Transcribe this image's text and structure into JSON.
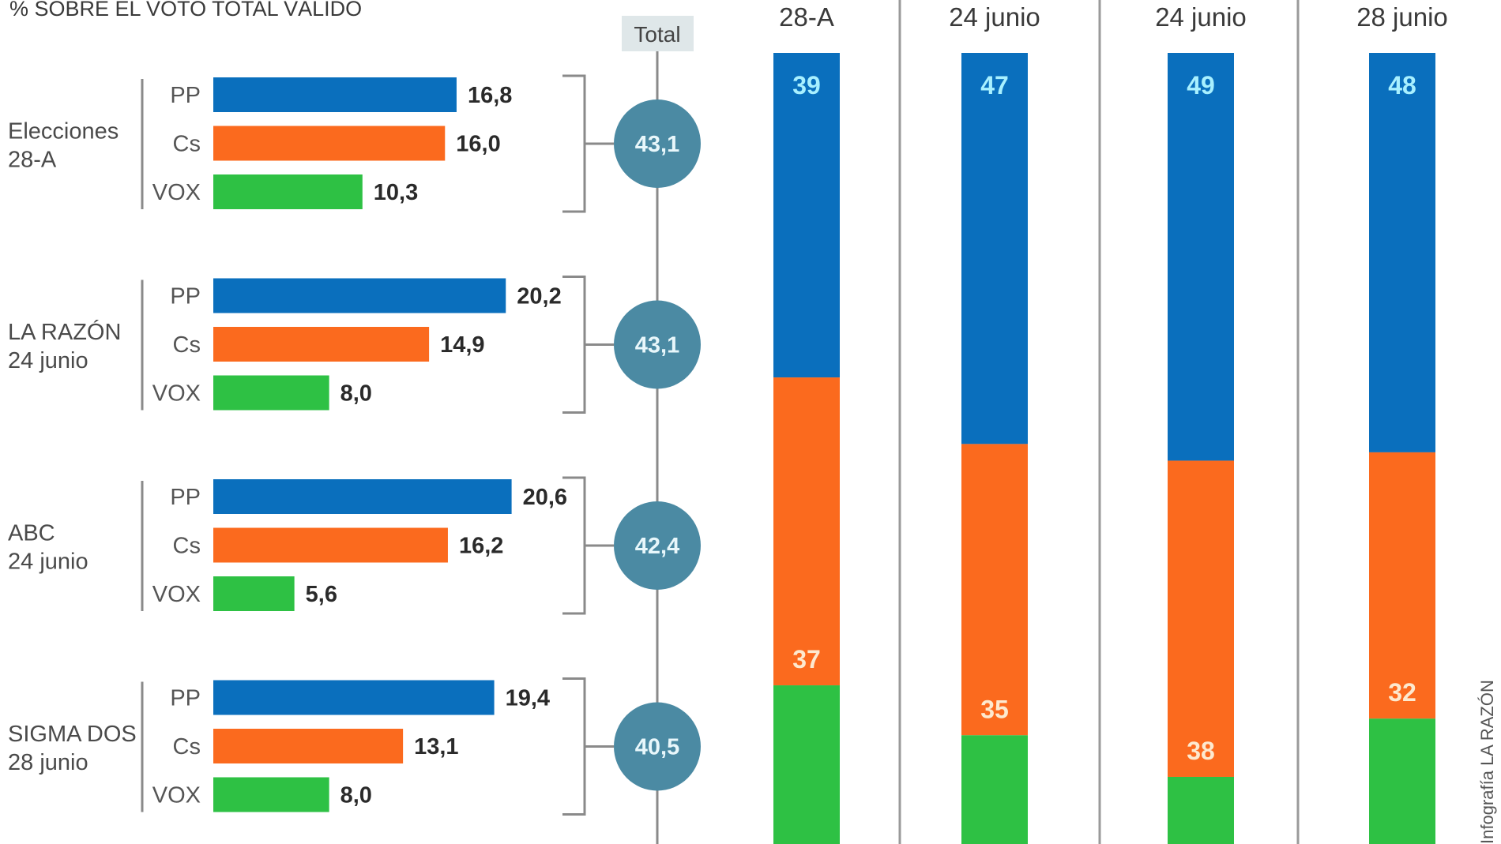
{
  "colors": {
    "PP": "#0a6fbd",
    "Cs": "#fb6a1e",
    "VOX": "#2ec144",
    "circle": "#4b8aa3",
    "total_box": "#dfe7e9",
    "lines": "#8a8a8a",
    "seg_label_blue": "#a8f0ff",
    "seg_label_orange": "#fde9cf",
    "seg_label_green": "#e6ffe0"
  },
  "title": "% SOBRE EL VOTO TOTAL VÁLIDO",
  "total_label": "Total",
  "credit": "Infografía LA RAZÓN",
  "chart_data": [
    {
      "type": "bar",
      "orientation": "horizontal",
      "title": "% SOBRE EL VOTO TOTAL VÁLIDO",
      "parties": [
        "PP",
        "Cs",
        "VOX"
      ],
      "groups": [
        {
          "label_line1": "Elecciones",
          "label_line2": "28-A",
          "values": [
            16.8,
            16.0,
            10.3
          ],
          "value_labels": [
            "16,8",
            "16,0",
            "10,3"
          ],
          "total": 43.1,
          "total_label": "43,1"
        },
        {
          "label_line1": "LA RAZÓN",
          "label_line2": "24 junio",
          "values": [
            20.2,
            14.9,
            8.0
          ],
          "value_labels": [
            "20,2",
            "14,9",
            "8,0"
          ],
          "total": 43.1,
          "total_label": "43,1"
        },
        {
          "label_line1": "ABC",
          "label_line2": "24 junio",
          "values": [
            20.6,
            16.2,
            5.6
          ],
          "value_labels": [
            "20,6",
            "16,2",
            "5,6"
          ],
          "total": 42.4,
          "total_label": "42,4"
        },
        {
          "label_line1": "SIGMA DOS",
          "label_line2": "28 junio",
          "values": [
            19.4,
            13.1,
            8.0
          ],
          "value_labels": [
            "19,4",
            "13,1",
            "8,0"
          ],
          "total": 40.5,
          "total_label": "40,5"
        }
      ],
      "xlabel": "",
      "ylabel": ""
    },
    {
      "type": "bar",
      "orientation": "vertical-stacked-100",
      "categories": [
        "28-A",
        "24 junio",
        "24 junio",
        "28 junio"
      ],
      "series": [
        {
          "name": "PP",
          "values": [
            39,
            47,
            49,
            48
          ]
        },
        {
          "name": "Cs",
          "values": [
            37,
            35,
            38,
            32
          ]
        },
        {
          "name": "VOX",
          "values": [
            24,
            18,
            13,
            20
          ]
        }
      ],
      "visible_segment_labels": {
        "PP": [
          "39",
          "47",
          "49",
          "48"
        ],
        "Cs": [
          "37",
          "35",
          "38",
          "32"
        ]
      },
      "ylim": [
        0,
        100
      ]
    }
  ]
}
